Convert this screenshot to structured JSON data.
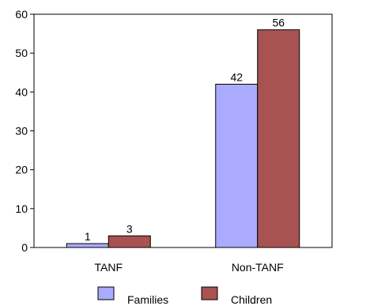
{
  "chart_data": {
    "type": "bar",
    "categories": [
      "TANF",
      "Non-TANF"
    ],
    "series": [
      {
        "name": "Families",
        "values": [
          1,
          42
        ],
        "color": "#aaaaff"
      },
      {
        "name": "Children",
        "values": [
          3,
          56
        ],
        "color": "#a85252"
      }
    ],
    "ylim": [
      0,
      60
    ],
    "yticks": [
      0,
      10,
      20,
      30,
      40,
      50,
      60
    ],
    "ytick_labels": [
      "0",
      "10",
      "20",
      "30",
      "40",
      "50",
      "60"
    ],
    "data_labels": [
      [
        "1",
        "42"
      ],
      [
        "3",
        "56"
      ]
    ],
    "grid": false,
    "legend_position": "bottom-center",
    "title": "",
    "xlabel": "",
    "ylabel": ""
  }
}
